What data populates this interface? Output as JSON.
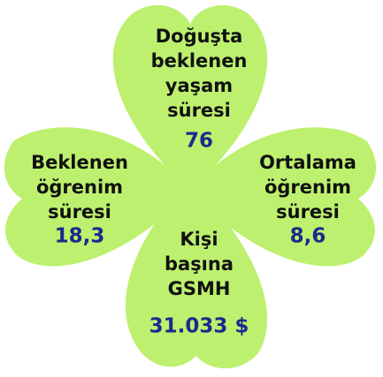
{
  "leaves": [
    {
      "label": [
        "Doğuşta",
        "beklenen",
        "yaşam",
        "süresi"
      ],
      "value": "76"
    },
    {
      "label": [
        "Beklenen",
        "öğrenim",
        "süresi"
      ],
      "value": "18,3"
    },
    {
      "label": [
        "Ortalama",
        "öğrenim",
        "süresi"
      ],
      "value": "8,6"
    },
    {
      "label": [
        "Kişi",
        "başına",
        "GSMH"
      ],
      "value": "31.033 $"
    }
  ]
}
